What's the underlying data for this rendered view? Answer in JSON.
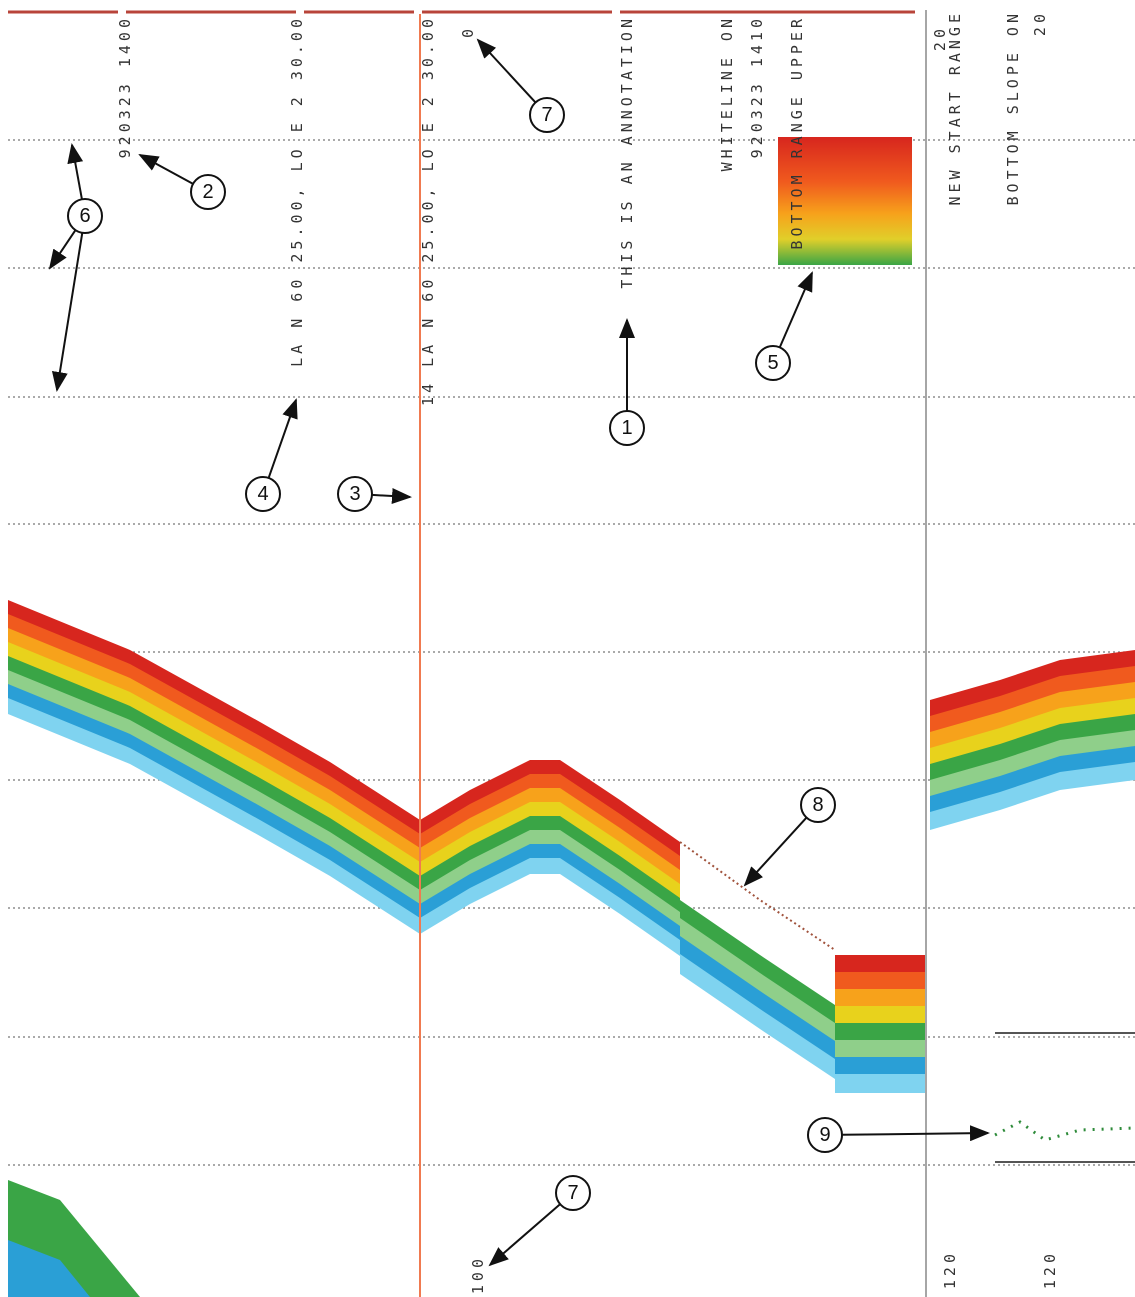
{
  "labels": [
    "920323 1400",
    "LA N 60 25.00, LO E 2 30.00",
    "14 LA N 60 25.00, LO E 2 30.00",
    "0",
    "THIS IS AN ANNOTATION",
    "WHITELINE ON",
    "920323 1410",
    "BOTTOM RANGE UPPER",
    "20",
    "NEW START RANGE",
    "BOTTOM SLOPE ON",
    "20",
    "100",
    "120",
    "120"
  ],
  "callouts": [
    "1",
    "2",
    "3",
    "4",
    "5",
    "6",
    "7",
    "7",
    "8",
    "9"
  ]
}
